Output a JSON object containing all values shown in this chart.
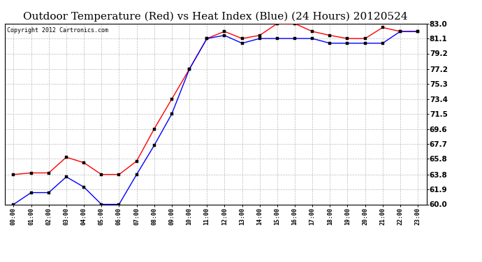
{
  "title": "Outdoor Temperature (Red) vs Heat Index (Blue) (24 Hours) 20120524",
  "copyright": "Copyright 2012 Cartronics.com",
  "x_labels": [
    "00:00",
    "01:00",
    "02:00",
    "03:00",
    "04:00",
    "05:00",
    "06:00",
    "07:00",
    "08:00",
    "09:00",
    "10:00",
    "11:00",
    "12:00",
    "13:00",
    "14:00",
    "15:00",
    "16:00",
    "17:00",
    "18:00",
    "19:00",
    "20:00",
    "21:00",
    "22:00",
    "23:00"
  ],
  "temp_red": [
    63.8,
    64.0,
    64.0,
    66.0,
    65.3,
    63.8,
    63.8,
    65.5,
    69.6,
    73.4,
    77.2,
    81.1,
    82.0,
    81.1,
    81.5,
    83.0,
    83.0,
    82.0,
    81.5,
    81.1,
    81.1,
    82.5,
    82.0,
    82.0
  ],
  "heat_blue": [
    60.0,
    61.5,
    61.5,
    63.5,
    62.2,
    60.0,
    60.0,
    63.8,
    67.5,
    71.5,
    77.2,
    81.1,
    81.5,
    80.5,
    81.1,
    81.1,
    81.1,
    81.1,
    80.5,
    80.5,
    80.5,
    80.5,
    82.0,
    82.0
  ],
  "ylim": [
    60.0,
    83.0
  ],
  "y_ticks": [
    60.0,
    61.9,
    63.8,
    65.8,
    67.7,
    69.6,
    71.5,
    73.4,
    75.3,
    77.2,
    79.2,
    81.1,
    83.0
  ],
  "y_tick_labels": [
    "60.0",
    "61.9",
    "63.8",
    "65.8",
    "67.7",
    "69.6",
    "71.5",
    "73.4",
    "75.3",
    "77.2",
    "79.2",
    "81.1",
    "83.0"
  ],
  "bg_color": "#ffffff",
  "plot_bg": "#ffffff",
  "grid_color": "#bbbbbb",
  "title_fontsize": 11,
  "copyright_fontsize": 6,
  "tick_fontsize": 7.5,
  "x_tick_fontsize": 6
}
